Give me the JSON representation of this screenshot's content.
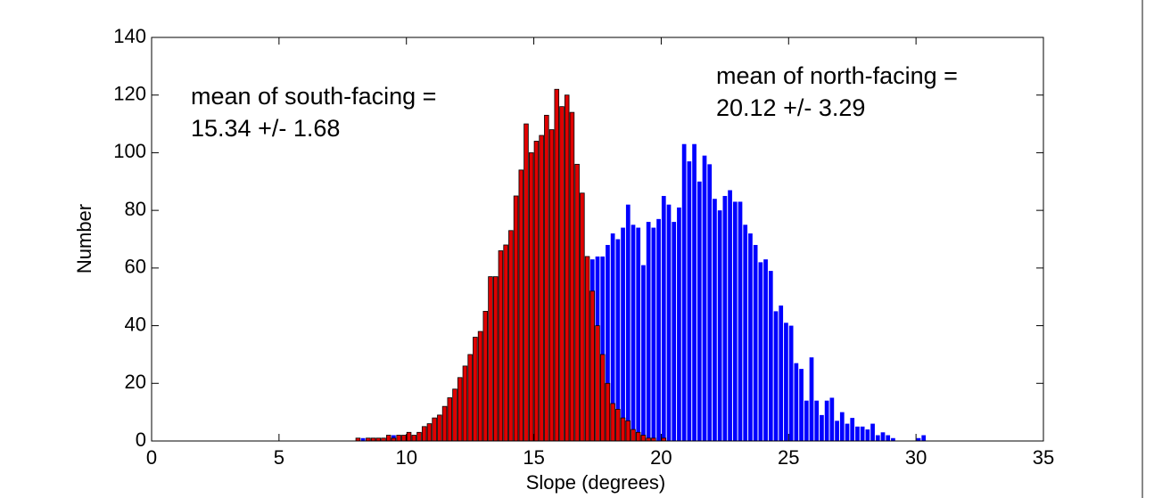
{
  "chart_data": {
    "type": "histogram",
    "x_label": "Slope (degrees)",
    "y_label": "Number",
    "xlim": [
      0,
      35
    ],
    "xticks": [
      0,
      5,
      10,
      15,
      20,
      25,
      30,
      35
    ],
    "ylim": [
      0,
      140
    ],
    "yticks": [
      0,
      20,
      40,
      60,
      80,
      100,
      120,
      140
    ],
    "grid": false,
    "bins": [
      8.0,
      8.2,
      8.4,
      8.6,
      8.8,
      9.0,
      9.2,
      9.4,
      9.6,
      9.8,
      10.0,
      10.2,
      10.4,
      10.6,
      10.8,
      11.0,
      11.2,
      11.4,
      11.6,
      11.8,
      12.0,
      12.2,
      12.4,
      12.6,
      12.8,
      13.0,
      13.2,
      13.4,
      13.6,
      13.8,
      14.0,
      14.2,
      14.4,
      14.6,
      14.8,
      15.0,
      15.2,
      15.4,
      15.6,
      15.8,
      16.0,
      16.2,
      16.4,
      16.6,
      16.8,
      17.0,
      17.2,
      17.4,
      17.6,
      17.8,
      18.0,
      18.2,
      18.4,
      18.6,
      18.8,
      19.0,
      19.2,
      19.4,
      19.6,
      19.8,
      20.0,
      20.2,
      20.4,
      20.6,
      20.8,
      21.0,
      21.2,
      21.4,
      21.6,
      21.8,
      22.0,
      22.2,
      22.4,
      22.6,
      22.8,
      23.0,
      23.2,
      23.4,
      23.6,
      23.8,
      24.0,
      24.2,
      24.4,
      24.6,
      24.8,
      25.0,
      25.2,
      25.4,
      25.6,
      25.8,
      26.0,
      26.2,
      26.4,
      26.6,
      26.8,
      27.0,
      27.2,
      27.4,
      27.6,
      27.8,
      28.0,
      28.2,
      28.4,
      28.6,
      28.8,
      29.0,
      29.2,
      29.4,
      29.6,
      29.8,
      30.0,
      30.2,
      30.4
    ],
    "series": [
      {
        "color": "#0000ff",
        "edge": "none",
        "values": [
          1,
          1,
          0,
          1,
          0,
          1,
          1,
          2,
          1,
          2,
          1,
          2,
          2,
          2,
          3,
          2,
          3,
          3,
          4,
          4,
          3,
          4,
          5,
          4,
          6,
          5,
          7,
          8,
          8,
          10,
          9,
          12,
          12,
          14,
          16,
          18,
          20,
          22,
          25,
          30,
          34,
          38,
          44,
          48,
          52,
          57,
          63,
          64,
          64,
          68,
          72,
          70,
          74,
          82,
          75,
          74,
          61,
          76,
          74,
          77,
          85,
          82,
          76,
          81,
          103,
          97,
          103,
          90,
          99,
          96,
          84,
          80,
          85,
          87,
          83,
          83,
          75,
          72,
          68,
          62,
          63,
          59,
          45,
          47,
          41,
          40,
          27,
          25,
          14,
          29,
          14,
          9,
          14,
          15,
          7,
          10,
          6,
          8,
          5,
          5,
          4,
          6,
          2,
          3,
          2,
          1,
          0,
          0,
          0,
          0,
          1,
          2
        ]
      },
      {
        "color": "#e00000",
        "edge": "#000000",
        "values": [
          1,
          0,
          1,
          1,
          1,
          1,
          2,
          1,
          2,
          2,
          3,
          2,
          3,
          5,
          6,
          8,
          9,
          12,
          15,
          18,
          22,
          26,
          30,
          36,
          38,
          45,
          57,
          57,
          66,
          68,
          73,
          85,
          94,
          110,
          100,
          104,
          106,
          113,
          108,
          122,
          116,
          120,
          114,
          96,
          86,
          64,
          52,
          40,
          30,
          20,
          13,
          11,
          8,
          7,
          4,
          3,
          2,
          1,
          1,
          0,
          1,
          0,
          0,
          0,
          0,
          0,
          0,
          0,
          0,
          0,
          0,
          0,
          0,
          0,
          0,
          0,
          0,
          0,
          0,
          0,
          0,
          0,
          0,
          0,
          0,
          0,
          0,
          0,
          0,
          0,
          0,
          0,
          0,
          0,
          0,
          0,
          0,
          0,
          0,
          0,
          0,
          0,
          0,
          0,
          0,
          0,
          0,
          0,
          0,
          0,
          0,
          0
        ]
      }
    ],
    "annotations": [
      {
        "lines": [
          "mean of south-facing =",
          "15.34 +/- 1.68"
        ],
        "color": "#e00000"
      },
      {
        "lines": [
          "mean of north-facing =",
          "20.12 +/- 3.29"
        ],
        "color": "#0000ff"
      }
    ]
  }
}
